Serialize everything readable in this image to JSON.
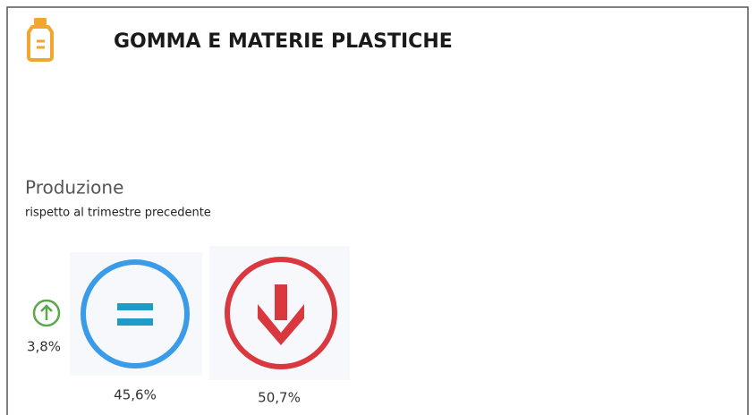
{
  "header": {
    "title": "GOMMA E MATERIE PLASTICHE"
  },
  "section": {
    "title": "Produzione",
    "subtitle": "rispetto al trimestre precedente"
  },
  "indicators": [
    {
      "label": "3,8%"
    },
    {
      "label": "45,6%"
    },
    {
      "label": "50,7%"
    }
  ]
}
